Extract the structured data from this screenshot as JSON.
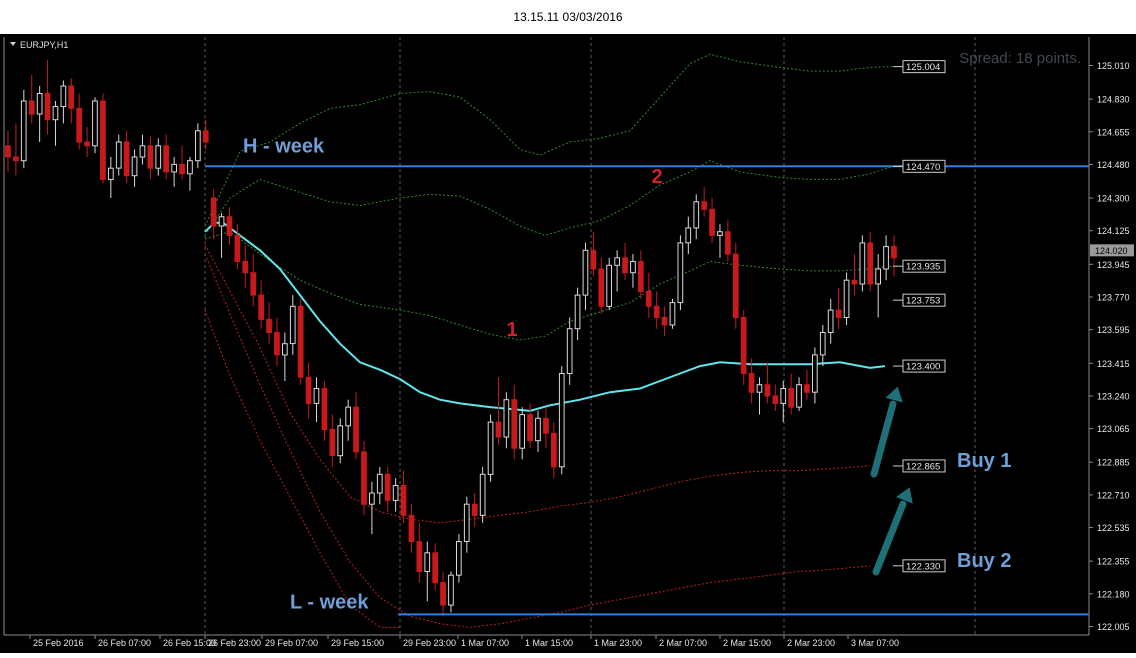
{
  "title": "13.15.11 03/03/2016",
  "chart_data": {
    "type": "candlestick",
    "symbol_label": "EURJPY,H1",
    "spread_label": "Spread: 18 points.",
    "x_ticks": [
      "25 Feb 2016",
      "26 Feb 07:00",
      "26 Feb 15:00",
      "26 Feb 23:00",
      "29 Feb 07:00",
      "29 Feb 15:00",
      "29 Feb 23:00",
      "1 Mar 07:00",
      "1 Mar 15:00",
      "1 Mar 23:00",
      "2 Mar 07:00",
      "2 Mar 15:00",
      "2 Mar 23:00",
      "3 Mar 07:00"
    ],
    "y_ticks": [
      "125.010",
      "124.830",
      "124.655",
      "124.480",
      "124.300",
      "124.125",
      "123.945",
      "123.770",
      "123.595",
      "123.415",
      "123.240",
      "123.065",
      "122.885",
      "122.710",
      "122.535",
      "122.355",
      "122.180",
      "122.005"
    ],
    "ylim": [
      122.005,
      125.08
    ],
    "current_price": "124.020",
    "price_tags": [
      "125.004",
      "124.470",
      "123.935",
      "123.753",
      "123.400",
      "122.865",
      "122.330"
    ],
    "levels": [
      {
        "name": "H - week",
        "value": 124.47
      },
      {
        "name": "L - week",
        "value": 122.07
      }
    ],
    "annotations": [
      {
        "text": "1",
        "x": "1 Mar 12:00",
        "y": 123.56
      },
      {
        "text": "2",
        "x": "2 Mar 07:00",
        "y": 124.38
      },
      {
        "text": "Buy 1",
        "level": 122.865
      },
      {
        "text": "Buy 2",
        "level": 122.33
      }
    ],
    "candles": [
      [
        124.58,
        124.66,
        124.44,
        124.52
      ],
      [
        124.52,
        124.7,
        124.42,
        124.5
      ],
      [
        124.5,
        124.88,
        124.46,
        124.82
      ],
      [
        124.82,
        124.96,
        124.7,
        124.75
      ],
      [
        124.75,
        124.9,
        124.6,
        124.86
      ],
      [
        124.86,
        125.04,
        124.64,
        124.72
      ],
      [
        124.72,
        124.82,
        124.58,
        124.79
      ],
      [
        124.79,
        124.93,
        124.7,
        124.9
      ],
      [
        124.9,
        124.94,
        124.7,
        124.78
      ],
      [
        124.78,
        124.86,
        124.56,
        124.6
      ],
      [
        124.6,
        124.68,
        124.52,
        124.58
      ],
      [
        124.58,
        124.84,
        124.54,
        124.82
      ],
      [
        124.82,
        124.86,
        124.38,
        124.4
      ],
      [
        124.4,
        124.52,
        124.3,
        124.46
      ],
      [
        124.46,
        124.64,
        124.42,
        124.6
      ],
      [
        124.6,
        124.66,
        124.38,
        124.42
      ],
      [
        124.42,
        124.56,
        124.36,
        124.52
      ],
      [
        124.52,
        124.64,
        124.48,
        124.58
      ],
      [
        124.58,
        124.63,
        124.4,
        124.46
      ],
      [
        124.46,
        124.62,
        124.42,
        124.58
      ],
      [
        124.58,
        124.64,
        124.4,
        124.44
      ],
      [
        124.44,
        124.52,
        124.36,
        124.48
      ],
      [
        124.48,
        124.58,
        124.4,
        124.43
      ],
      [
        124.43,
        124.52,
        124.34,
        124.5
      ],
      [
        124.5,
        124.7,
        124.46,
        124.66
      ],
      [
        124.66,
        124.72,
        124.56,
        124.6
      ],
      [
        124.3,
        124.35,
        124.08,
        124.15
      ],
      [
        124.15,
        124.22,
        123.98,
        124.2
      ],
      [
        124.2,
        124.25,
        124.05,
        124.1
      ],
      [
        124.1,
        124.16,
        123.92,
        123.96
      ],
      [
        123.96,
        124.05,
        123.82,
        123.9
      ],
      [
        123.9,
        124.0,
        123.72,
        123.78
      ],
      [
        123.78,
        123.86,
        123.6,
        123.65
      ],
      [
        123.65,
        123.74,
        123.52,
        123.58
      ],
      [
        123.58,
        123.66,
        123.4,
        123.46
      ],
      [
        123.46,
        123.58,
        123.32,
        123.52
      ],
      [
        123.52,
        123.78,
        123.46,
        123.72
      ],
      [
        123.72,
        123.76,
        123.3,
        123.34
      ],
      [
        123.34,
        123.42,
        123.12,
        123.2
      ],
      [
        123.2,
        123.34,
        123.1,
        123.28
      ],
      [
        123.28,
        123.32,
        123.0,
        123.06
      ],
      [
        123.06,
        123.14,
        122.86,
        122.92
      ],
      [
        122.92,
        123.12,
        122.88,
        123.08
      ],
      [
        123.08,
        123.22,
        123.0,
        123.18
      ],
      [
        123.18,
        123.26,
        122.9,
        122.94
      ],
      [
        122.94,
        123.0,
        122.6,
        122.66
      ],
      [
        122.66,
        122.78,
        122.5,
        122.72
      ],
      [
        122.72,
        122.86,
        122.66,
        122.82
      ],
      [
        122.82,
        122.86,
        122.62,
        122.68
      ],
      [
        122.68,
        122.8,
        122.62,
        122.76
      ],
      [
        122.76,
        122.84,
        122.56,
        122.6
      ],
      [
        122.6,
        122.66,
        122.4,
        122.46
      ],
      [
        122.46,
        122.56,
        122.24,
        122.3
      ],
      [
        122.3,
        122.46,
        122.14,
        122.4
      ],
      [
        122.4,
        122.45,
        122.2,
        122.24
      ],
      [
        122.24,
        122.3,
        122.06,
        122.12
      ],
      [
        122.12,
        122.3,
        122.08,
        122.28
      ],
      [
        122.28,
        122.5,
        122.24,
        122.46
      ],
      [
        122.46,
        122.7,
        122.4,
        122.66
      ],
      [
        122.66,
        122.72,
        122.54,
        122.6
      ],
      [
        122.6,
        122.86,
        122.56,
        122.82
      ],
      [
        122.82,
        123.14,
        122.78,
        123.1
      ],
      [
        123.1,
        123.34,
        122.98,
        123.02
      ],
      [
        123.02,
        123.26,
        122.96,
        123.22
      ],
      [
        123.22,
        123.3,
        122.9,
        122.96
      ],
      [
        122.96,
        123.18,
        122.9,
        123.14
      ],
      [
        123.14,
        123.2,
        122.96,
        123.0
      ],
      [
        123.0,
        123.16,
        122.94,
        123.12
      ],
      [
        123.12,
        123.18,
        122.96,
        123.04
      ],
      [
        123.04,
        123.1,
        122.8,
        122.86
      ],
      [
        122.86,
        123.4,
        122.82,
        123.36
      ],
      [
        123.36,
        123.66,
        123.3,
        123.6
      ],
      [
        123.6,
        123.82,
        123.54,
        123.78
      ],
      [
        123.78,
        124.06,
        123.7,
        124.02
      ],
      [
        124.02,
        124.12,
        123.88,
        123.92
      ],
      [
        123.92,
        123.98,
        123.68,
        123.72
      ],
      [
        123.72,
        123.98,
        123.7,
        123.94
      ],
      [
        123.94,
        124.02,
        123.8,
        123.98
      ],
      [
        123.98,
        124.06,
        123.86,
        123.9
      ],
      [
        123.9,
        124.0,
        123.82,
        123.96
      ],
      [
        123.96,
        124.02,
        123.76,
        123.8
      ],
      [
        123.8,
        123.9,
        123.66,
        123.72
      ],
      [
        123.72,
        123.8,
        123.6,
        123.66
      ],
      [
        123.66,
        123.72,
        123.56,
        123.62
      ],
      [
        123.62,
        123.76,
        123.6,
        123.74
      ],
      [
        123.74,
        124.1,
        123.7,
        124.06
      ],
      [
        124.06,
        124.2,
        124.0,
        124.14
      ],
      [
        124.14,
        124.32,
        124.08,
        124.28
      ],
      [
        124.28,
        124.36,
        124.2,
        124.24
      ],
      [
        124.24,
        124.3,
        124.06,
        124.1
      ],
      [
        124.1,
        124.16,
        123.98,
        124.12
      ],
      [
        124.12,
        124.18,
        123.96,
        124.0
      ],
      [
        124.0,
        124.06,
        123.6,
        123.66
      ],
      [
        123.66,
        123.7,
        123.3,
        123.36
      ],
      [
        123.36,
        123.44,
        123.2,
        123.26
      ],
      [
        123.26,
        123.34,
        123.14,
        123.3
      ],
      [
        123.3,
        123.42,
        123.2,
        123.24
      ],
      [
        123.24,
        123.3,
        123.16,
        123.2
      ],
      [
        123.2,
        123.32,
        123.1,
        123.28
      ],
      [
        123.28,
        123.36,
        123.14,
        123.18
      ],
      [
        123.18,
        123.34,
        123.16,
        123.3
      ],
      [
        123.3,
        123.38,
        123.22,
        123.26
      ],
      [
        123.26,
        123.5,
        123.2,
        123.46
      ],
      [
        123.46,
        123.62,
        123.4,
        123.58
      ],
      [
        123.58,
        123.76,
        123.52,
        123.7
      ],
      [
        123.7,
        123.82,
        123.6,
        123.66
      ],
      [
        123.66,
        123.9,
        123.62,
        123.86
      ],
      [
        123.86,
        124.0,
        123.78,
        123.84
      ],
      [
        123.84,
        124.1,
        123.8,
        124.06
      ],
      [
        124.06,
        124.12,
        123.8,
        123.84
      ],
      [
        123.84,
        124.0,
        123.66,
        123.92
      ],
      [
        123.92,
        124.1,
        123.86,
        124.04
      ],
      [
        124.04,
        124.1,
        123.88,
        123.98
      ]
    ]
  }
}
